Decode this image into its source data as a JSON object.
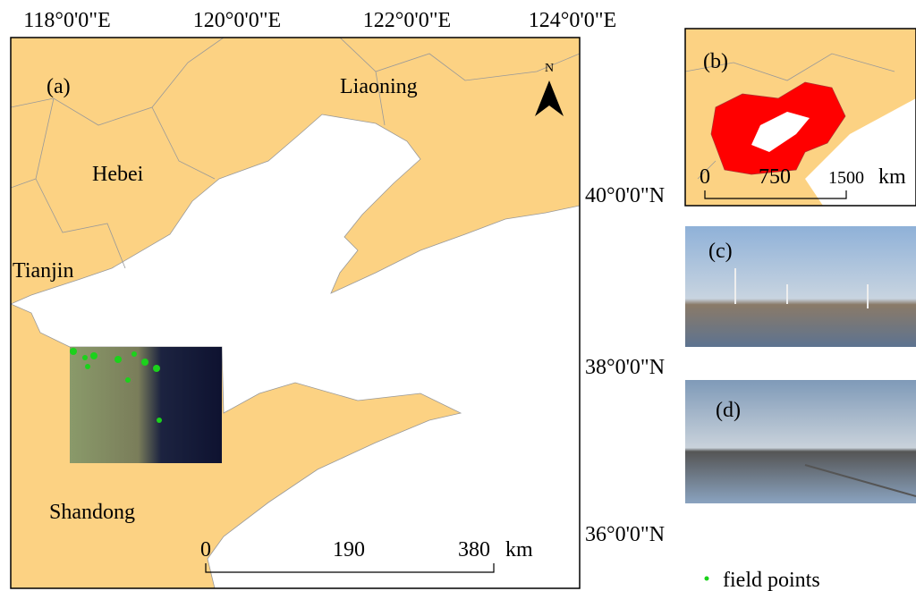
{
  "longitude_labels": [
    "118°0'0\"E",
    "120°0'0\"E",
    "122°0'0\"E",
    "124°0'0\"E"
  ],
  "latitude_labels": [
    "40°0'0\"N",
    "38°0'0\"N",
    "36°0'0\"N"
  ],
  "panel_a": {
    "label": "(a)",
    "north": "N",
    "provinces": [
      "Liaoning",
      "Hebei",
      "Tianjin",
      "Shandong"
    ],
    "scale_bar": {
      "ticks": [
        "0",
        "190",
        "380"
      ],
      "unit": "km"
    }
  },
  "panel_b": {
    "label": "(b)",
    "scale_bar": {
      "ticks": [
        "0",
        "750",
        "1500"
      ],
      "unit": "km"
    }
  },
  "panel_c": {
    "label": "(c)"
  },
  "panel_d": {
    "label": "(d)"
  },
  "legend": {
    "label": "field points"
  }
}
